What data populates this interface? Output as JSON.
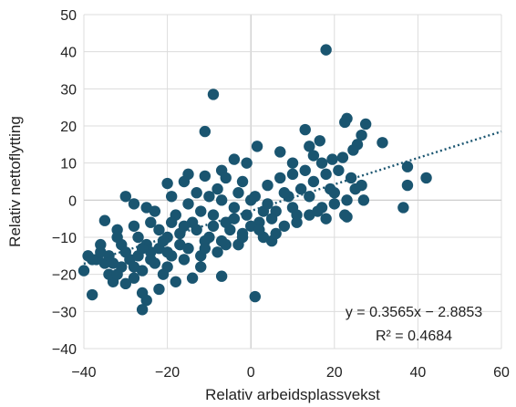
{
  "chart_data": {
    "type": "scatter",
    "xlabel": "Relativ arbeidsplassvekst",
    "ylabel": "Relativ nettoflytting",
    "xlim": [
      -40,
      60
    ],
    "ylim": [
      -40,
      50
    ],
    "xticks": [
      -40,
      -20,
      0,
      20,
      40,
      60
    ],
    "yticks": [
      -40,
      -30,
      -20,
      -10,
      0,
      10,
      20,
      30,
      40,
      50
    ],
    "xtick_labels": [
      "−40",
      "−20",
      "0",
      "20",
      "40",
      "60"
    ],
    "ytick_labels": [
      "−40",
      "−30",
      "−20",
      "−10",
      "0",
      "10",
      "20",
      "30",
      "40",
      "50"
    ],
    "grid": true,
    "point_color": "#1a5570",
    "trend_color": "#1a5570",
    "trendline": {
      "slope": 0.3565,
      "intercept": -2.8853,
      "equation_label": "y = 0.3565x − 2.8853",
      "r2_label": "R² = 0.4684"
    },
    "points": [
      [
        18,
        40.5
      ],
      [
        -9,
        28.5
      ],
      [
        -11,
        18.5
      ],
      [
        13,
        19
      ],
      [
        23,
        22
      ],
      [
        22.5,
        21
      ],
      [
        27.5,
        20.5
      ],
      [
        31.5,
        15.5
      ],
      [
        26.5,
        17.5
      ],
      [
        25.5,
        15
      ],
      [
        16.5,
        16
      ],
      [
        14,
        14.5
      ],
      [
        24.5,
        13.5
      ],
      [
        1.5,
        14.5
      ],
      [
        7,
        13
      ],
      [
        19.5,
        11
      ],
      [
        -4,
        11
      ],
      [
        -1,
        10
      ],
      [
        10,
        10
      ],
      [
        15,
        12
      ],
      [
        22,
        11.5
      ],
      [
        37.5,
        9
      ],
      [
        42,
        6
      ],
      [
        37.5,
        4
      ],
      [
        36.5,
        -2
      ],
      [
        26.5,
        4
      ],
      [
        27,
        0
      ],
      [
        22.5,
        -4
      ],
      [
        23,
        -4.5
      ],
      [
        -16,
        5
      ],
      [
        -20,
        4.5
      ],
      [
        -15,
        7
      ],
      [
        -7,
        8
      ],
      [
        -11,
        6.5
      ],
      [
        -30,
        1
      ],
      [
        -28,
        -1
      ],
      [
        -25,
        -2
      ],
      [
        -19,
        1
      ],
      [
        -23,
        -3
      ],
      [
        -35,
        -5.5
      ],
      [
        -32,
        -8
      ],
      [
        -39,
        -15
      ],
      [
        -37,
        -16
      ],
      [
        -40,
        -19
      ],
      [
        -38,
        -25.5
      ],
      [
        -33,
        -22
      ],
      [
        -30,
        -22.5
      ],
      [
        -26,
        -25
      ],
      [
        -25,
        -27
      ],
      [
        -26,
        -29.5
      ],
      [
        -22,
        -24
      ],
      [
        1,
        -26
      ],
      [
        -7,
        -20.5
      ],
      [
        -20,
        -18
      ],
      [
        -28,
        -21
      ],
      [
        -34,
        -20
      ],
      [
        -12,
        -15
      ],
      [
        -6,
        -12
      ],
      [
        -2,
        -9
      ],
      [
        5,
        -11
      ],
      [
        8,
        -7
      ],
      [
        11,
        -6
      ],
      [
        14,
        -4
      ],
      [
        17,
        -2
      ],
      [
        20,
        -1
      ],
      [
        3,
        -3
      ],
      [
        0,
        0
      ],
      [
        -3,
        2
      ],
      [
        -8,
        3
      ],
      [
        -13,
        2
      ],
      [
        -18,
        -4
      ],
      [
        -22,
        -8
      ],
      [
        -27,
        -10
      ],
      [
        -31,
        -12
      ],
      [
        -36,
        -14
      ],
      [
        -24,
        -14
      ],
      [
        -17,
        -12
      ],
      [
        -10,
        -10
      ],
      [
        -5,
        -8
      ],
      [
        2,
        -6
      ],
      [
        6,
        -3
      ],
      [
        9,
        1
      ],
      [
        12,
        3
      ],
      [
        15,
        5
      ],
      [
        18,
        7
      ],
      [
        21,
        8
      ],
      [
        -14,
        -6
      ],
      [
        -9,
        -4
      ],
      [
        -4,
        -2
      ],
      [
        1,
        1
      ],
      [
        4,
        4
      ],
      [
        7,
        6
      ],
      [
        10,
        7
      ],
      [
        -20,
        -10
      ],
      [
        -25,
        -12
      ],
      [
        -29,
        -16
      ],
      [
        -33,
        -17
      ],
      [
        -16,
        -16
      ],
      [
        -12,
        -18
      ],
      [
        -8,
        -14
      ],
      [
        -3,
        -12
      ],
      [
        3,
        -10
      ],
      [
        -21,
        -20
      ],
      [
        -18,
        -22
      ],
      [
        -14,
        -21
      ],
      [
        -19,
        -15
      ],
      [
        -23,
        -17
      ],
      [
        -26,
        -19
      ],
      [
        -31,
        -18
      ],
      [
        -35,
        -17
      ],
      [
        -15,
        -13
      ],
      [
        -11,
        -11
      ],
      [
        -6,
        -6
      ],
      [
        -1,
        -4
      ],
      [
        4,
        -1
      ],
      [
        8,
        2
      ],
      [
        13,
        8
      ],
      [
        17,
        10
      ],
      [
        -2,
        5
      ],
      [
        -6,
        6
      ],
      [
        -10,
        1
      ],
      [
        -15,
        -1
      ],
      [
        -19,
        -6
      ],
      [
        -24,
        -6
      ],
      [
        -28,
        -7
      ],
      [
        -32,
        -10
      ],
      [
        -36,
        -12
      ],
      [
        -30,
        -14
      ],
      [
        -27,
        -15
      ],
      [
        -22,
        -13
      ],
      [
        -17,
        -9
      ],
      [
        -13,
        -8
      ],
      [
        -9,
        -7
      ],
      [
        -4,
        -5
      ],
      [
        0,
        -7
      ],
      [
        5,
        -5
      ],
      [
        10,
        -2
      ],
      [
        14,
        1
      ],
      [
        19,
        3
      ],
      [
        24,
        6
      ],
      [
        -7,
        0
      ],
      [
        -12,
        -3
      ],
      [
        -16,
        -7
      ],
      [
        -21,
        -11
      ],
      [
        -26,
        -13
      ],
      [
        -34,
        -15
      ],
      [
        -38,
        -16
      ],
      [
        -20,
        -14
      ],
      [
        -24,
        -16
      ],
      [
        -28,
        -18
      ],
      [
        -32,
        -20
      ],
      [
        -11,
        -13
      ],
      [
        -7,
        -11
      ],
      [
        -2,
        -10
      ],
      [
        2,
        -8
      ],
      [
        6,
        -9
      ],
      [
        11,
        -4
      ],
      [
        16,
        -3
      ],
      [
        20,
        2
      ],
      [
        23,
        0
      ],
      [
        25,
        3
      ],
      [
        18,
        -5
      ]
    ]
  }
}
